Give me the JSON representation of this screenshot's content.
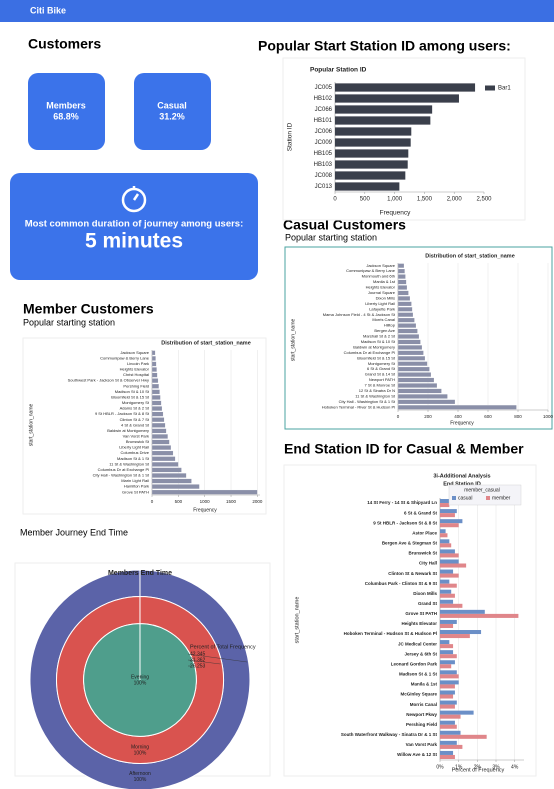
{
  "header": {
    "title": "Citi Bike"
  },
  "customers": {
    "title": "Customers",
    "kpis": [
      {
        "label": "Members",
        "value": "68.8%"
      },
      {
        "label": "Casual",
        "value": "31.2%"
      }
    ]
  },
  "duration": {
    "label": "Most common duration of journey among users:",
    "value": "5 minutes"
  },
  "sections": {
    "popular_start": "Popular Start Station ID among users:",
    "casual_title": "Casual Customers",
    "casual_subtitle": "Popular starting station",
    "member_title": "Member Customers",
    "member_subtitle": "Popular starting station",
    "member_end": "Member Journey End Time",
    "end_station": "End Station ID for Casual & Member"
  },
  "chart_data": [
    {
      "type": "hbar",
      "title": "Popular Station ID",
      "x_label": "Frequency",
      "y_label": "Station ID",
      "categories": [
        "JC005",
        "HB102",
        "JC066",
        "HB101",
        "JC006",
        "JC009",
        "HB105",
        "HB103",
        "JC008",
        "JC013"
      ],
      "series": [
        {
          "name": "Bar1",
          "color": "#3a3f4b",
          "values": [
            2350,
            2080,
            1630,
            1600,
            1280,
            1270,
            1230,
            1220,
            1180,
            1080
          ]
        }
      ],
      "xlim": [
        0,
        2500
      ],
      "xticks": [
        0,
        500,
        {
          "value": 1000,
          "label": "1,000"
        },
        {
          "value": 1500,
          "label": "1,500"
        },
        {
          "value": 2000,
          "label": "2,000"
        },
        {
          "value": 2500,
          "label": "2,500"
        }
      ],
      "grid": false,
      "legend": "right"
    },
    {
      "type": "hbar",
      "title": "Distribution of start_station_name",
      "x_label": "Frequency",
      "y_label": "start_station_name",
      "categories": [
        "Jackson Square",
        "Communipaw & Berry Lane",
        "Monmouth and 6th",
        "Manila & 1st",
        "Heights Elevator",
        "Journal Square",
        "Dixon Mills",
        "Liberty Light Rail",
        "Lafayette Park",
        "Mama Johnson Field - 4 St & Jackson St",
        "Morris Canal",
        "Hilltop",
        "Bergen Ave",
        "Marshall St & 2 St",
        "Madison St & 10 St",
        "Baldwin at Montgomery",
        "Columbus Dr at Exchange Pl",
        "Bloomfield St & 15 St",
        "Montgomery St",
        "6 St & Grand St",
        "Grand St & 14 St",
        "Newport PATH",
        "7 St & Monroe St",
        "12 St & Sinatra Dr N",
        "11 St & Washington St",
        "City Hall - Washington St & 1 St",
        "Hoboken Terminal - River St & Hudson Pl"
      ],
      "series": [
        {
          "name": "Frequency",
          "color": "#8a8fa8",
          "values": [
            40,
            45,
            50,
            55,
            60,
            70,
            80,
            90,
            95,
            100,
            110,
            120,
            130,
            140,
            150,
            160,
            170,
            180,
            195,
            210,
            220,
            240,
            260,
            290,
            330,
            380,
            790
          ]
        }
      ],
      "xlim": [
        0,
        1000
      ],
      "xticks": [
        0,
        200,
        400,
        600,
        800,
        1000
      ],
      "grid": true
    },
    {
      "type": "hbar",
      "title": "Distribution of start_station_name",
      "x_label": "Frequency",
      "y_label": "start_station_name",
      "categories": [
        "Jackson Square",
        "Communipaw & Berry Lane",
        "Lincoln Park",
        "Heights Elevator",
        "Christ Hospital",
        "Southwest Park - Jackson St & Observer Hwy",
        "Pershing Field",
        "Madison St & 10 St",
        "Bloomfield St & 15 St",
        "Montgomery St",
        "Adams St & 2 St",
        "9 St HBLR - Jackson St & 8 St",
        "Clinton St & 7 St",
        "4 St & Grand St",
        "Baldwin at Montgomery",
        "Van Vorst Park",
        "Brunswick St",
        "Liberty Light Rail",
        "Columbus Drive",
        "Madison St & 1 St",
        "11 St & Washington St",
        "Columbus Dr at Exchange Pl",
        "City Hall - Washington St & 1 St",
        "Marin Light Rail",
        "Hamilton Park",
        "Grove St PATH"
      ],
      "series": [
        {
          "name": "Frequency",
          "color": "#8a8fa8",
          "values": [
            60,
            70,
            80,
            90,
            100,
            115,
            130,
            145,
            160,
            175,
            190,
            210,
            230,
            250,
            270,
            300,
            330,
            360,
            400,
            440,
            500,
            560,
            650,
            750,
            900,
            2000
          ]
        }
      ],
      "xlim": [
        0,
        2050
      ],
      "xticks": [
        0,
        500,
        1000,
        1500,
        2000
      ],
      "grid": true
    },
    {
      "type": "rings",
      "title": "Members End Time",
      "categories": [
        "Afternoon",
        "Morning",
        "Evening"
      ],
      "values": [
        100,
        100,
        100
      ],
      "value_labels": [
        "100%",
        "100%",
        "100%"
      ],
      "colors": [
        "#5b63a8",
        "#d9534f",
        "#4f9e8c"
      ],
      "legend_title": "Percent of Total Frequency",
      "legend_values": [
        42.345,
        31.362,
        26.253
      ]
    },
    {
      "type": "hbar",
      "title": "3i-Additional Analysis",
      "subtitle": "End Station ID",
      "x_label": "Percent of Frequency",
      "y_label": "start_station_name",
      "categories": [
        "14 St Ferry - 14 St & Shipyard Ln",
        "6 St & Grand St",
        "9 St HBLR - Jackson St & 8 St",
        "Astor Place",
        "Bergen Ave & Stegman St",
        "Brunswick St",
        "City Hall",
        "Clinton St & Newark St",
        "Columbus Park - Clinton St & 9 St",
        "Dixon Mills",
        "Grand St",
        "Grove St PATH",
        "Heights Elevator",
        "Hoboken Terminal - Hudson St & Hudson Pl",
        "JC Medical Center",
        "Jersey & 6th St",
        "Leonard Gordon Park",
        "Madison St & 1 St",
        "Manila & 1st",
        "McGinley Square",
        "Morris Canal",
        "Newport Pkwy",
        "Pershing Field",
        "South Waterfront Walkway - Sinatra Dr & 1 St",
        "Van Vorst Park",
        "Willow Ave & 12 St"
      ],
      "series": [
        {
          "name": "casual",
          "color": "#6b8fc7",
          "values": [
            0.6,
            0.9,
            1.2,
            0.3,
            0.5,
            0.8,
            1.0,
            0.7,
            0.5,
            0.6,
            0.7,
            2.4,
            0.9,
            2.2,
            0.5,
            0.7,
            0.8,
            0.9,
            1.0,
            0.8,
            0.9,
            1.8,
            0.8,
            1.1,
            0.9,
            0.7
          ]
        },
        {
          "name": "member",
          "color": "#e0868a",
          "values": [
            0.5,
            0.8,
            1.0,
            0.4,
            0.6,
            1.0,
            1.4,
            1.0,
            0.9,
            0.8,
            1.2,
            4.2,
            0.7,
            1.6,
            0.7,
            0.9,
            0.6,
            1.0,
            0.8,
            0.7,
            0.8,
            1.1,
            0.9,
            2.5,
            1.2,
            0.8
          ]
        }
      ],
      "xlim": [
        0,
        4.5
      ],
      "xticks": [
        {
          "value": 0,
          "label": "0%"
        },
        {
          "value": 1,
          "label": "1%"
        },
        {
          "value": 2,
          "label": "2%"
        },
        {
          "value": 3,
          "label": "3%"
        },
        {
          "value": 4,
          "label": "4%"
        }
      ],
      "grid": true,
      "legend": "top-right",
      "legend_title": "member_casual"
    }
  ]
}
